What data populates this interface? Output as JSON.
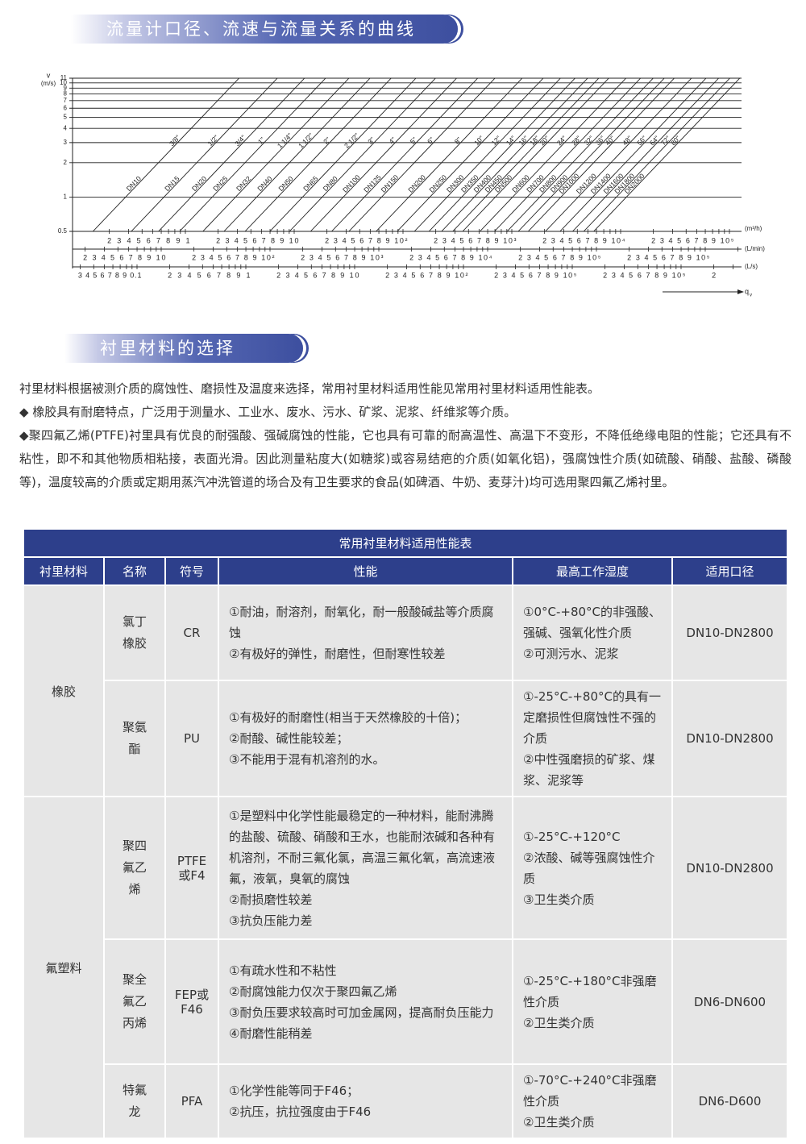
{
  "section1": {
    "title": "流量计口径、流速与流量关系的曲线"
  },
  "chart": {
    "y_label": "v",
    "y_unit": "(m/s)",
    "ylim": [
      0.5,
      11
    ],
    "yticks": [
      0.5,
      1,
      2,
      3,
      4,
      5,
      6,
      7,
      8,
      9,
      10,
      11
    ],
    "log_scale": true,
    "dn_lines": [
      "DN10",
      "DN15",
      "DN20",
      "DN25",
      "DN32",
      "DN40",
      "DN50",
      "DN65",
      "DN80",
      "DN100",
      "DN125",
      "DN150",
      "DN200",
      "DN250",
      "DN300",
      "DN350",
      "DN400",
      "DN450",
      "DN500",
      "DN600",
      "DN700",
      "DN800",
      "DN900",
      "DN1000",
      "DN1200",
      "DN1400",
      "DN1600",
      "DN1800",
      "DN2000"
    ],
    "inch_labels": [
      "3/8\"",
      "1/2\"",
      "3/4\"",
      "1\"",
      "1 1/4\"",
      "1 1/2\"",
      "2\"",
      "2 1/2\"",
      "3\"",
      "4\"",
      "5\"",
      "6\"",
      "8\"",
      "10\"",
      "12\"",
      "14\"",
      "16\"",
      "18\"",
      "20\"",
      "24\"",
      "28\"",
      "32\"",
      "36\"",
      "40\"",
      "48\"",
      "56\"",
      "64\"",
      "72\"",
      "80\""
    ],
    "flow_rows": [
      {
        "unit": "(m³/h)",
        "groups": [
          "2 3 4 5 6 7 8 9 1",
          "2 3 4 5 6 7 8 9 10",
          "2 3 4 5 6 7 8 9 10²",
          "2 3 4 5 6 7 8 9 10³",
          "2 3 4 5 6 7 8 9 10⁴",
          "2 3 4 5 6 7 8 9 10⁵"
        ]
      },
      {
        "unit": "(L/min)",
        "groups": [
          "2 3 4 5 6 7 8 9 10",
          "2 3 4 5 6 7 8 9 10²",
          "2 3 4 5 6 7 8 9 10³",
          "2 3 4 5 6 7 8 9 10⁴",
          "2 3 4 5 6 7 8 9 10⁵",
          "2 3 4 5 6 7 8 9 10⁵"
        ]
      },
      {
        "unit": "(L/s)",
        "groups": [
          "3 4 5 6 7 8 9 0.1",
          "2 3 4 5 6 7 8 9 1",
          "2 3 4 5 6 7 8 9 10",
          "2 3 4 5 6 7 8 9 10²",
          "2 3 4 5 6 7 8 9 10⁵",
          "2 3 4 5 6 7 8 9 10⁵",
          "2"
        ]
      }
    ],
    "flow_symbol": "q",
    "flow_subscript": "v"
  },
  "section2": {
    "title": "衬里材料的选择",
    "paragraphs": [
      "衬里材料根据被测介质的腐蚀性、磨损性及温度来选择，常用衬里材料适用性能见常用衬里材料适用性能表。",
      "◆ 橡胶具有耐磨特点，广泛用于测量水、工业水、废水、污水、矿浆、泥浆、纤维浆等介质。",
      "◆聚四氟乙烯(PTFE)衬里具有优良的耐强酸、强碱腐蚀的性能，它也具有可靠的耐高温性、高温下不变形，不降低绝缘电阻的性能；它还具有不粘性，即不和其他物质相粘接，表面光滑。因此测量粘度大(如糖浆)或容易结疤的介质(如氧化铝)，强腐蚀性介质(如硫酸、硝酸、盐酸、磷酸等)，温度较高的介质或定期用蒸汽冲洗管道的场合及有卫生要求的食品(如碑酒、牛奶、麦芽汁)均可选用聚四氟乙烯衬里。"
    ]
  },
  "table": {
    "title": "常用衬里材料适用性能表",
    "headers": [
      "衬里材料",
      "名称",
      "符号",
      "性能",
      "最高工作湿度",
      "适用口径"
    ],
    "groups": [
      {
        "material": "橡胶",
        "rows": [
          {
            "name": "氯丁橡胶",
            "symbol": "CR",
            "performance": [
              "①耐油，耐溶剂，耐氧化，耐一般酸碱盐等介质腐蚀",
              "②有极好的弹性，耐磨性，但耐寒性较差"
            ],
            "temperature": [
              "①0°C-+80°C的非强酸、强碱、强氧化性介质",
              "②可测污水、泥浆"
            ],
            "size": "DN10-DN2800"
          },
          {
            "name": "聚氨酯",
            "symbol": "PU",
            "performance": [
              "①有极好的耐磨性(相当于天然橡胶的十倍)；",
              "②耐酸、碱性能较差；",
              "③不能用于混有机溶剂的水。"
            ],
            "temperature": [
              "①-25°C-+80°C的具有一定磨损性但腐蚀性不强的介质",
              "②中性强磨损的矿浆、煤浆、泥浆等"
            ],
            "size": "DN10-DN2800"
          }
        ]
      },
      {
        "material": "氟塑料",
        "rows": [
          {
            "name": "聚四氟乙烯",
            "symbol": "PTFE或F4",
            "performance": [
              "①是塑料中化学性能最稳定的一种材料，能耐沸腾的盐酸、硫酸、硝酸和王水，也能耐浓碱和各种有机溶剂，不耐三氟化氯，高温三氟化氧，高流速液氟，液氧，臭氧的腐蚀",
              "②耐损磨性较差",
              "③抗负压能力差"
            ],
            "temperature": [
              "①-25°C-+120°C",
              "②浓酸、碱等强腐蚀性介质",
              "③卫生类介质"
            ],
            "size": "DN10-DN2800"
          },
          {
            "name": "聚全氟乙丙烯",
            "symbol": "FEP或F46",
            "performance": [
              "①有疏水性和不粘性",
              "②耐腐蚀能力仅次于聚四氟乙烯",
              "③耐负压要求较高时可加金属网，提高耐负压能力",
              "④耐磨性能稍差"
            ],
            "temperature": [
              "①-25°C-+180°C非强磨性介质",
              "②卫生类介质"
            ],
            "size": "DN6-DN600"
          },
          {
            "name": "特氟龙",
            "symbol": "PFA",
            "performance": [
              "①化学性能等同于F46；",
              "②抗压，抗拉强度由于F46"
            ],
            "temperature": [
              "①-70°C-+240°C非强磨性介质",
              "②卫生类介质"
            ],
            "size": "DN6-D600"
          }
        ]
      }
    ]
  }
}
